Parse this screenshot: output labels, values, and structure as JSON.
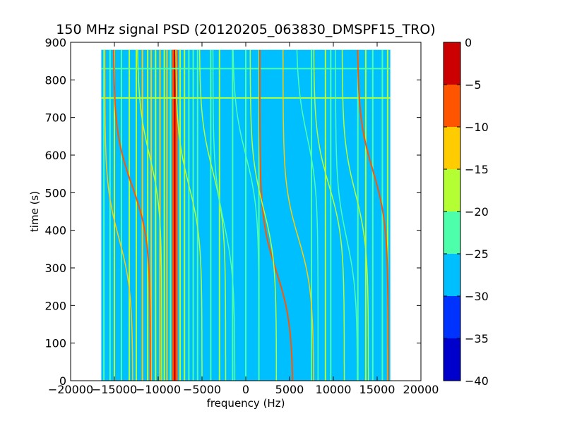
{
  "chart_data": {
    "type": "heatmap",
    "title": "150 MHz signal PSD (20120205_063830_DMSPF15_TRO)",
    "xlabel": "frequency (Hz)",
    "ylabel": "time (s)",
    "xlim": [
      -20000,
      20000
    ],
    "ylim": [
      0,
      900
    ],
    "x_ticks": [
      -20000,
      -15000,
      -10000,
      -5000,
      0,
      5000,
      10000,
      15000,
      20000
    ],
    "x_tick_labels": [
      "−20000",
      "−15000",
      "−10000",
      "−5000",
      "0",
      "5000",
      "10000",
      "15000",
      "20000"
    ],
    "y_ticks": [
      0,
      100,
      200,
      300,
      400,
      500,
      600,
      700,
      800,
      900
    ],
    "y_tick_labels": [
      "0",
      "100",
      "200",
      "300",
      "400",
      "500",
      "600",
      "700",
      "800",
      "900"
    ],
    "data_extent": {
      "frequency_hz": [
        -16500,
        16500
      ],
      "time_s": [
        0,
        880
      ]
    },
    "background_level": -27.5,
    "colorbar": {
      "levels": [
        -40,
        -35,
        -30,
        -25,
        -20,
        -15,
        -10,
        -5,
        0
      ],
      "tick_labels": [
        "−40",
        "−35",
        "−30",
        "−25",
        "−20",
        "−15",
        "−10",
        "−5",
        "0"
      ],
      "colors": [
        "#0000cc",
        "#0033ff",
        "#00bfff",
        "#4dffaa",
        "#b3ff33",
        "#ffcc00",
        "#ff5500",
        "#cc0000"
      ]
    },
    "vertical_bands": [
      {
        "f": -16200,
        "level": -22.5
      },
      {
        "f": -15500,
        "level": -22.5
      },
      {
        "f": -15000,
        "level": -17.5
      },
      {
        "f": -14200,
        "level": -22.5
      },
      {
        "f": -13300,
        "level": -17.5
      },
      {
        "f": -12500,
        "level": -17.5
      },
      {
        "f": -11800,
        "level": -12.5
      },
      {
        "f": -11200,
        "level": -17.5
      },
      {
        "f": -10800,
        "level": -12.5
      },
      {
        "f": -10300,
        "level": -17.5
      },
      {
        "f": -9800,
        "level": -12.5
      },
      {
        "f": -9300,
        "level": -17.5
      },
      {
        "f": -9000,
        "level": -12.5
      },
      {
        "f": -8600,
        "level": -22.5
      },
      {
        "f": -8300,
        "level": -7.5
      },
      {
        "f": -8100,
        "level": -2.5
      },
      {
        "f": -7900,
        "level": -7.5
      },
      {
        "f": -7500,
        "level": -17.5
      },
      {
        "f": -7000,
        "level": -17.5
      },
      {
        "f": -6500,
        "level": -22.5
      },
      {
        "f": -6000,
        "level": -22.5
      },
      {
        "f": -5500,
        "level": -22.5
      },
      {
        "f": -4000,
        "level": -22.5
      },
      {
        "f": -3000,
        "level": -17.5
      },
      {
        "f": -1500,
        "level": -22.5
      },
      {
        "f": 0,
        "level": -22.5
      },
      {
        "f": 1500,
        "level": -22.5
      },
      {
        "f": 7500,
        "level": -22.5
      },
      {
        "f": 9100,
        "level": -17.5
      },
      {
        "f": 9700,
        "level": -22.5
      },
      {
        "f": 12800,
        "level": -22.5
      },
      {
        "f": 13700,
        "level": -17.5
      },
      {
        "f": 14500,
        "level": -22.5
      },
      {
        "f": 15600,
        "level": -22.5
      },
      {
        "f": 16200,
        "level": -17.5
      }
    ],
    "horizontal_bands": [
      {
        "t": 830,
        "level": -22.5
      },
      {
        "t": 752,
        "level": -17.5
      }
    ],
    "doppler_traces": [
      {
        "f_center": -13000,
        "t_center": 520,
        "width_hz": 4200,
        "level": -7.5
      },
      {
        "f_center": -14500,
        "t_center": 380,
        "width_hz": 3200,
        "level": -12.5
      },
      {
        "f_center": 14500,
        "t_center": 560,
        "width_hz": 3500,
        "level": -7.5
      },
      {
        "f_center": 12500,
        "t_center": 500,
        "width_hz": 3000,
        "level": -17.5
      },
      {
        "f_center": 3500,
        "t_center": 290,
        "width_hz": 3800,
        "level": -7.5
      },
      {
        "f_center": 6000,
        "t_center": 380,
        "width_hz": 3500,
        "level": -12.5
      },
      {
        "f_center": 2000,
        "t_center": 460,
        "width_hz": 3000,
        "level": -17.5
      },
      {
        "f_center": 9500,
        "t_center": 520,
        "width_hz": 3500,
        "level": -17.5
      },
      {
        "f_center": -3800,
        "t_center": 560,
        "width_hz": 3000,
        "level": -17.5
      },
      {
        "f_center": -2500,
        "t_center": 420,
        "width_hz": 2500,
        "level": -22.5
      },
      {
        "f_center": -6500,
        "t_center": 520,
        "width_hz": 3000,
        "level": -17.5
      },
      {
        "f_center": 7000,
        "t_center": 650,
        "width_hz": 2500,
        "level": -22.5
      },
      {
        "f_center": 11500,
        "t_center": 380,
        "width_hz": 2500,
        "level": -22.5
      },
      {
        "f_center": -11000,
        "t_center": 600,
        "width_hz": 2800,
        "level": -17.5
      },
      {
        "f_center": 0,
        "t_center": 600,
        "width_hz": 3000,
        "level": -22.5
      }
    ]
  }
}
